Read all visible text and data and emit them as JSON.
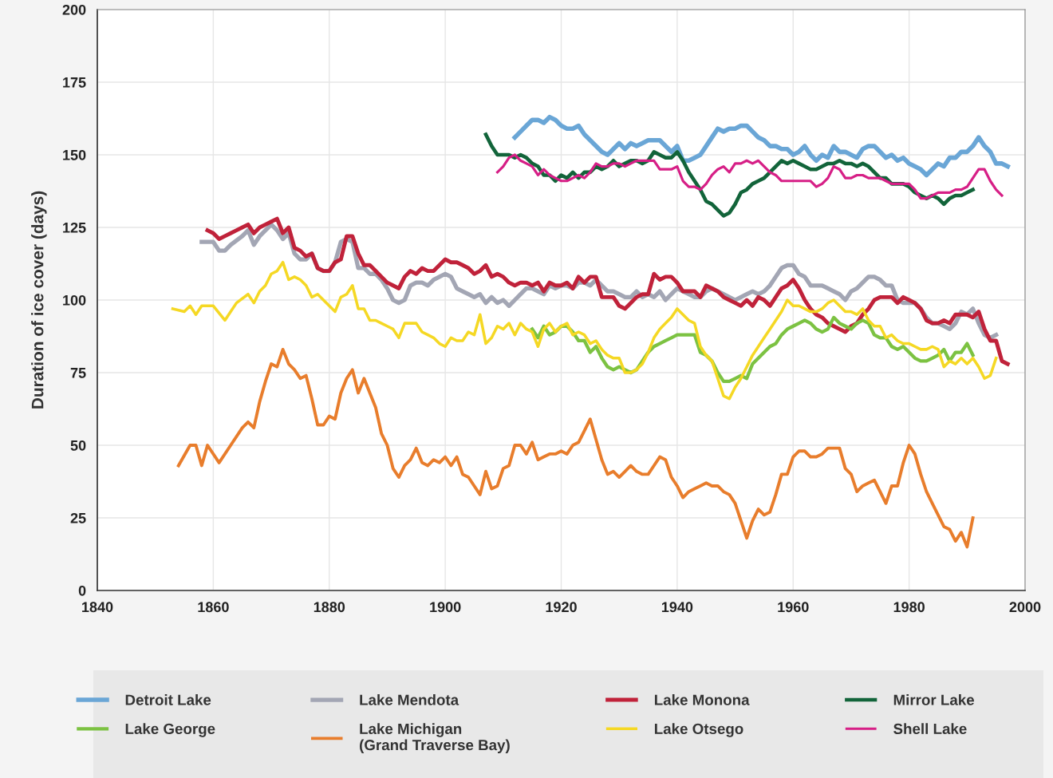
{
  "chart_data": {
    "type": "line",
    "ylabel": "Duration of ice cover (days)",
    "xlim": [
      1840,
      2000
    ],
    "xticks": [
      1840,
      1860,
      1880,
      1900,
      1920,
      1940,
      1960,
      1980,
      2000
    ],
    "ylim": [
      0,
      200
    ],
    "yticks": [
      0,
      25,
      50,
      75,
      100,
      125,
      150,
      175,
      200
    ],
    "grid": true,
    "legend": "bottom",
    "marker": "none",
    "line_style": "solid",
    "series": [
      {
        "name": "Detroit Lake",
        "color": "#6aa6d6",
        "x": [
          1912,
          1913,
          1914,
          1915,
          1916,
          1917,
          1918,
          1919,
          1920,
          1921,
          1922,
          1923,
          1924,
          1925,
          1926,
          1927,
          1928,
          1929,
          1930,
          1931,
          1932,
          1933,
          1934,
          1935,
          1936,
          1937,
          1938,
          1939,
          1940,
          1941,
          1942,
          1943,
          1944,
          1945,
          1946,
          1947,
          1948,
          1949,
          1950,
          1951,
          1952,
          1953,
          1954,
          1955,
          1956,
          1957,
          1958,
          1959,
          1960,
          1961,
          1962,
          1963,
          1964,
          1965,
          1966,
          1967,
          1968,
          1969,
          1970,
          1971,
          1972,
          1973,
          1974,
          1975,
          1976,
          1977,
          1978,
          1979,
          1980,
          1981,
          1982,
          1983,
          1984,
          1985,
          1986,
          1987,
          1988,
          1989,
          1990,
          1991,
          1992,
          1993,
          1994,
          1995,
          1996,
          1997
        ],
        "values": [
          156,
          158,
          160,
          162,
          162,
          161,
          163,
          162,
          160,
          159,
          159,
          160,
          157,
          155,
          153,
          151,
          150,
          152,
          154,
          152,
          154,
          153,
          154,
          155,
          155,
          155,
          153,
          151,
          153,
          148,
          148,
          149,
          150,
          153,
          156,
          159,
          158,
          159,
          159,
          160,
          160,
          158,
          156,
          155,
          153,
          153,
          152,
          152,
          150,
          151,
          153,
          150,
          148,
          150,
          149,
          153,
          151,
          151,
          150,
          149,
          152,
          153,
          153,
          151,
          149,
          150,
          148,
          149,
          147,
          146,
          145,
          143,
          145,
          147,
          146,
          149,
          149,
          151,
          151,
          153,
          156,
          153,
          151,
          147,
          147,
          146
        ]
      },
      {
        "name": "Lake Mendota",
        "color": "#a3a6b4",
        "x": [
          1858,
          1860,
          1861,
          1862,
          1863,
          1865,
          1866,
          1867,
          1868,
          1869,
          1870,
          1871,
          1872,
          1873,
          1874,
          1875,
          1876,
          1877,
          1878,
          1879,
          1880,
          1881,
          1882,
          1883,
          1884,
          1885,
          1886,
          1887,
          1888,
          1889,
          1890,
          1891,
          1892,
          1893,
          1894,
          1895,
          1896,
          1897,
          1898,
          1899,
          1900,
          1901,
          1902,
          1903,
          1904,
          1905,
          1906,
          1907,
          1908,
          1909,
          1910,
          1911,
          1912,
          1913,
          1914,
          1915,
          1916,
          1917,
          1918,
          1919,
          1920,
          1921,
          1922,
          1923,
          1924,
          1925,
          1926,
          1927,
          1928,
          1929,
          1930,
          1931,
          1932,
          1933,
          1934,
          1935,
          1936,
          1937,
          1938,
          1939,
          1940,
          1941,
          1942,
          1943,
          1944,
          1945,
          1946,
          1947,
          1948,
          1949,
          1950,
          1951,
          1952,
          1953,
          1954,
          1955,
          1956,
          1957,
          1958,
          1959,
          1960,
          1961,
          1962,
          1963,
          1964,
          1965,
          1966,
          1967,
          1968,
          1969,
          1970,
          1971,
          1972,
          1973,
          1974,
          1975,
          1976,
          1977,
          1978,
          1979,
          1980,
          1981,
          1982,
          1983,
          1984,
          1985,
          1986,
          1987,
          1988,
          1989,
          1990,
          1991,
          1992,
          1993,
          1994,
          1995
        ],
        "values": [
          120,
          120,
          117,
          117,
          119,
          122,
          124,
          119,
          122,
          124,
          126,
          124,
          121,
          123,
          116,
          114,
          114,
          116,
          111,
          110,
          110,
          113,
          120,
          121,
          120,
          111,
          111,
          109,
          109,
          107,
          104,
          100,
          99,
          100,
          105,
          106,
          106,
          105,
          107,
          108,
          109,
          108,
          104,
          103,
          102,
          101,
          102,
          99,
          101,
          99,
          100,
          98,
          100,
          102,
          104,
          104,
          103,
          102,
          105,
          104,
          105,
          105,
          104,
          106,
          106,
          105,
          107,
          105,
          103,
          103,
          102,
          101,
          101,
          103,
          101,
          102,
          101,
          103,
          100,
          102,
          104,
          103,
          102,
          101,
          101,
          103,
          104,
          103,
          102,
          101,
          100,
          101,
          102,
          103,
          102,
          103,
          105,
          108,
          111,
          112,
          112,
          109,
          108,
          105,
          105,
          105,
          104,
          103,
          102,
          100,
          103,
          104,
          106,
          108,
          108,
          107,
          105,
          105,
          100,
          99,
          99,
          99,
          97,
          94,
          92,
          92,
          91,
          90,
          92,
          96,
          95,
          97,
          92,
          88,
          87,
          88
        ]
      },
      {
        "name": "Lake Monona",
        "color": "#c0223a",
        "x": [
          1859,
          1860,
          1861,
          1862,
          1863,
          1864,
          1865,
          1866,
          1867,
          1868,
          1869,
          1870,
          1871,
          1872,
          1873,
          1874,
          1875,
          1876,
          1877,
          1878,
          1879,
          1880,
          1881,
          1882,
          1883,
          1884,
          1885,
          1886,
          1887,
          1888,
          1889,
          1890,
          1891,
          1892,
          1893,
          1894,
          1895,
          1896,
          1897,
          1898,
          1899,
          1900,
          1901,
          1902,
          1903,
          1904,
          1905,
          1906,
          1907,
          1908,
          1909,
          1910,
          1911,
          1912,
          1913,
          1914,
          1915,
          1916,
          1917,
          1918,
          1919,
          1920,
          1921,
          1922,
          1923,
          1924,
          1925,
          1926,
          1927,
          1928,
          1929,
          1930,
          1931,
          1932,
          1933,
          1934,
          1935,
          1936,
          1937,
          1938,
          1939,
          1940,
          1941,
          1942,
          1943,
          1944,
          1945,
          1946,
          1947,
          1948,
          1949,
          1950,
          1951,
          1952,
          1953,
          1954,
          1955,
          1956,
          1957,
          1958,
          1959,
          1960,
          1961,
          1962,
          1963,
          1964,
          1965,
          1966,
          1967,
          1968,
          1969,
          1970,
          1971,
          1972,
          1973,
          1974,
          1975,
          1976,
          1977,
          1978,
          1979,
          1980,
          1981,
          1982,
          1983,
          1984,
          1985,
          1986,
          1987,
          1988,
          1989,
          1990,
          1991,
          1992,
          1993,
          1994,
          1995,
          1996,
          1997
        ],
        "values": [
          124,
          123,
          121,
          122,
          123,
          124,
          125,
          126,
          123,
          125,
          126,
          127,
          128,
          123,
          125,
          118,
          117,
          115,
          116,
          111,
          110,
          110,
          113,
          114,
          122,
          122,
          116,
          112,
          112,
          110,
          108,
          106,
          105,
          104,
          108,
          110,
          109,
          111,
          110,
          110,
          112,
          114,
          113,
          113,
          112,
          111,
          109,
          110,
          112,
          108,
          109,
          108,
          106,
          105,
          106,
          106,
          105,
          106,
          103,
          106,
          105,
          105,
          106,
          104,
          108,
          106,
          108,
          108,
          101,
          101,
          101,
          98,
          97,
          99,
          101,
          102,
          102,
          109,
          107,
          108,
          108,
          106,
          103,
          103,
          103,
          101,
          105,
          104,
          103,
          101,
          100,
          99,
          98,
          100,
          98,
          101,
          100,
          98,
          101,
          104,
          105,
          107,
          104,
          100,
          97,
          95,
          94,
          92,
          91,
          90,
          89,
          91,
          92,
          95,
          97,
          100,
          101,
          101,
          101,
          99,
          101,
          100,
          99,
          97,
          93,
          92,
          92,
          93,
          92,
          95,
          95,
          95,
          94,
          96,
          90,
          86,
          86,
          79,
          78
        ]
      },
      {
        "name": "Mirror Lake",
        "color": "#12643a",
        "x": [
          1907,
          1908,
          1909,
          1910,
          1911,
          1912,
          1913,
          1914,
          1915,
          1916,
          1917,
          1918,
          1919,
          1920,
          1921,
          1922,
          1923,
          1924,
          1925,
          1926,
          1927,
          1928,
          1929,
          1930,
          1931,
          1932,
          1933,
          1934,
          1935,
          1936,
          1937,
          1938,
          1939,
          1940,
          1941,
          1942,
          1943,
          1944,
          1945,
          1946,
          1947,
          1948,
          1949,
          1950,
          1951,
          1952,
          1953,
          1954,
          1955,
          1956,
          1957,
          1958,
          1959,
          1960,
          1961,
          1962,
          1963,
          1964,
          1965,
          1966,
          1967,
          1968,
          1969,
          1970,
          1971,
          1972,
          1973,
          1974,
          1975,
          1976,
          1977,
          1978,
          1979,
          1980,
          1981,
          1982,
          1983,
          1984,
          1985,
          1986,
          1987,
          1988,
          1989,
          1990,
          1991
        ],
        "values": [
          157,
          153,
          150,
          150,
          150,
          149,
          150,
          149,
          147,
          146,
          143,
          143,
          141,
          143,
          142,
          144,
          142,
          144,
          144,
          146,
          145,
          146,
          148,
          146,
          147,
          148,
          148,
          147,
          148,
          151,
          150,
          149,
          149,
          151,
          148,
          144,
          141,
          138,
          134,
          133,
          131,
          129,
          130,
          133,
          137,
          138,
          140,
          141,
          142,
          144,
          146,
          148,
          147,
          148,
          147,
          146,
          145,
          145,
          146,
          147,
          147,
          148,
          147,
          147,
          146,
          147,
          146,
          144,
          142,
          142,
          140,
          140,
          140,
          139,
          137,
          136,
          135,
          136,
          135,
          133,
          135,
          136,
          136,
          137,
          138
        ]
      },
      {
        "name": "Lake George",
        "color": "#7cc242",
        "x": [
          1915,
          1916,
          1917,
          1918,
          1919,
          1920,
          1921,
          1922,
          1923,
          1924,
          1925,
          1926,
          1927,
          1928,
          1929,
          1930,
          1931,
          1932,
          1933,
          1934,
          1935,
          1936,
          1937,
          1938,
          1939,
          1940,
          1941,
          1942,
          1943,
          1944,
          1945,
          1946,
          1947,
          1948,
          1949,
          1950,
          1951,
          1952,
          1953,
          1954,
          1955,
          1956,
          1957,
          1958,
          1959,
          1960,
          1961,
          1962,
          1963,
          1964,
          1965,
          1966,
          1967,
          1968,
          1969,
          1970,
          1971,
          1972,
          1973,
          1974,
          1975,
          1976,
          1977,
          1978,
          1979,
          1980,
          1981,
          1982,
          1983,
          1984,
          1985,
          1986,
          1987,
          1988,
          1989,
          1990,
          1991
        ],
        "values": [
          90,
          87,
          91,
          88,
          89,
          91,
          91,
          89,
          86,
          86,
          82,
          84,
          80,
          77,
          76,
          77,
          76,
          75,
          76,
          79,
          82,
          84,
          85,
          86,
          87,
          88,
          88,
          88,
          88,
          82,
          81,
          79,
          75,
          72,
          72,
          73,
          74,
          73,
          78,
          80,
          82,
          84,
          85,
          88,
          90,
          91,
          92,
          93,
          92,
          90,
          89,
          90,
          94,
          92,
          91,
          90,
          92,
          93,
          92,
          88,
          87,
          87,
          84,
          83,
          84,
          82,
          80,
          79,
          79,
          80,
          81,
          83,
          79,
          82,
          82,
          85,
          81
        ]
      },
      {
        "name": "Lake Michigan\n(Grand Traverse Bay)",
        "color": "#e87d2c",
        "x": [
          1854,
          1856,
          1857,
          1858,
          1859,
          1861,
          1863,
          1865,
          1866,
          1867,
          1868,
          1869,
          1870,
          1871,
          1872,
          1873,
          1874,
          1875,
          1876,
          1877,
          1878,
          1879,
          1880,
          1881,
          1882,
          1883,
          1884,
          1885,
          1886,
          1887,
          1888,
          1889,
          1890,
          1891,
          1892,
          1893,
          1894,
          1895,
          1896,
          1897,
          1898,
          1899,
          1900,
          1901,
          1902,
          1903,
          1904,
          1905,
          1906,
          1907,
          1908,
          1909,
          1910,
          1911,
          1912,
          1913,
          1914,
          1915,
          1916,
          1917,
          1918,
          1919,
          1920,
          1921,
          1922,
          1923,
          1924,
          1925,
          1926,
          1927,
          1928,
          1929,
          1930,
          1931,
          1932,
          1933,
          1934,
          1935,
          1936,
          1937,
          1938,
          1939,
          1940,
          1941,
          1942,
          1943,
          1944,
          1945,
          1946,
          1947,
          1948,
          1949,
          1950,
          1951,
          1952,
          1953,
          1954,
          1955,
          1956,
          1957,
          1958,
          1959,
          1960,
          1961,
          1962,
          1963,
          1964,
          1965,
          1966,
          1967,
          1968,
          1969,
          1970,
          1971,
          1972,
          1973,
          1974,
          1975,
          1976,
          1977,
          1978,
          1979,
          1980,
          1981,
          1982,
          1983,
          1984,
          1985,
          1986,
          1987,
          1988,
          1989,
          1990,
          1991
        ],
        "values": [
          43,
          50,
          50,
          43,
          50,
          44,
          50,
          56,
          58,
          56,
          65,
          72,
          78,
          77,
          83,
          78,
          76,
          73,
          74,
          66,
          57,
          57,
          60,
          59,
          68,
          73,
          76,
          68,
          73,
          68,
          63,
          54,
          50,
          42,
          39,
          43,
          45,
          49,
          44,
          43,
          45,
          44,
          46,
          43,
          46,
          40,
          39,
          36,
          33,
          41,
          35,
          36,
          42,
          43,
          50,
          50,
          47,
          51,
          45,
          46,
          47,
          47,
          48,
          47,
          50,
          51,
          55,
          59,
          52,
          45,
          40,
          41,
          39,
          41,
          43,
          41,
          40,
          40,
          43,
          46,
          45,
          39,
          36,
          32,
          34,
          35,
          36,
          37,
          36,
          36,
          34,
          33,
          30,
          24,
          18,
          24,
          28,
          26,
          27,
          33,
          40,
          40,
          46,
          48,
          48,
          46,
          46,
          47,
          49,
          49,
          49,
          42,
          40,
          34,
          36,
          37,
          38,
          34,
          30,
          36,
          36,
          44,
          50,
          47,
          40,
          34,
          30,
          26,
          22,
          21,
          17,
          20,
          15,
          25
        ]
      },
      {
        "name": "Lake Otsego",
        "color": "#f5d824",
        "x": [
          1853,
          1855,
          1856,
          1857,
          1858,
          1860,
          1862,
          1863,
          1864,
          1866,
          1867,
          1868,
          1869,
          1870,
          1871,
          1872,
          1873,
          1874,
          1875,
          1876,
          1877,
          1878,
          1879,
          1880,
          1881,
          1882,
          1883,
          1884,
          1885,
          1886,
          1887,
          1888,
          1889,
          1890,
          1891,
          1892,
          1893,
          1894,
          1895,
          1896,
          1897,
          1898,
          1899,
          1900,
          1901,
          1902,
          1903,
          1904,
          1905,
          1906,
          1907,
          1908,
          1909,
          1910,
          1911,
          1912,
          1913,
          1914,
          1915,
          1916,
          1917,
          1918,
          1919,
          1920,
          1921,
          1922,
          1923,
          1924,
          1925,
          1926,
          1927,
          1928,
          1929,
          1930,
          1931,
          1932,
          1933,
          1934,
          1935,
          1936,
          1937,
          1938,
          1939,
          1940,
          1941,
          1942,
          1943,
          1944,
          1945,
          1946,
          1947,
          1948,
          1949,
          1950,
          1951,
          1952,
          1953,
          1954,
          1955,
          1956,
          1957,
          1958,
          1959,
          1960,
          1961,
          1962,
          1963,
          1964,
          1965,
          1966,
          1967,
          1968,
          1969,
          1970,
          1971,
          1972,
          1973,
          1974,
          1975,
          1976,
          1977,
          1978,
          1979,
          1980,
          1981,
          1982,
          1983,
          1984,
          1985,
          1986,
          1987,
          1988,
          1989,
          1990,
          1991,
          1992,
          1993,
          1994,
          1995
        ],
        "values": [
          97,
          96,
          98,
          95,
          98,
          98,
          93,
          96,
          99,
          102,
          99,
          103,
          105,
          109,
          110,
          113,
          107,
          108,
          107,
          105,
          101,
          102,
          100,
          98,
          96,
          101,
          102,
          105,
          97,
          97,
          93,
          93,
          92,
          91,
          90,
          87,
          92,
          92,
          92,
          89,
          88,
          87,
          85,
          84,
          87,
          86,
          86,
          89,
          88,
          95,
          85,
          87,
          91,
          90,
          92,
          88,
          92,
          90,
          89,
          84,
          90,
          92,
          89,
          91,
          92,
          88,
          89,
          88,
          85,
          86,
          83,
          81,
          80,
          80,
          75,
          75,
          76,
          78,
          82,
          87,
          90,
          92,
          94,
          97,
          95,
          93,
          92,
          84,
          81,
          79,
          73,
          67,
          66,
          70,
          73,
          77,
          81,
          84,
          87,
          90,
          93,
          96,
          100,
          98,
          98,
          97,
          96,
          96,
          97,
          99,
          100,
          98,
          96,
          96,
          95,
          97,
          93,
          91,
          91,
          87,
          88,
          86,
          85,
          85,
          84,
          83,
          83,
          84,
          83,
          77,
          79,
          78,
          80,
          78,
          80,
          77,
          73,
          74,
          80
        ]
      },
      {
        "name": "Shell Lake",
        "color": "#d61f86",
        "x": [
          1909,
          1910,
          1911,
          1912,
          1913,
          1914,
          1915,
          1916,
          1917,
          1918,
          1919,
          1920,
          1921,
          1922,
          1923,
          1924,
          1925,
          1926,
          1927,
          1928,
          1929,
          1930,
          1931,
          1932,
          1933,
          1934,
          1935,
          1936,
          1937,
          1938,
          1939,
          1940,
          1941,
          1942,
          1943,
          1944,
          1945,
          1946,
          1947,
          1948,
          1949,
          1950,
          1951,
          1952,
          1953,
          1954,
          1955,
          1956,
          1957,
          1958,
          1959,
          1960,
          1961,
          1962,
          1963,
          1964,
          1965,
          1966,
          1967,
          1968,
          1969,
          1970,
          1971,
          1972,
          1973,
          1974,
          1975,
          1976,
          1977,
          1978,
          1979,
          1980,
          1981,
          1982,
          1983,
          1984,
          1985,
          1986,
          1987,
          1988,
          1989,
          1990,
          1991,
          1992,
          1993,
          1994,
          1995,
          1996
        ],
        "values": [
          144,
          146,
          149,
          150,
          148,
          147,
          146,
          143,
          145,
          143,
          142,
          141,
          141,
          142,
          143,
          142,
          144,
          147,
          146,
          146,
          147,
          147,
          146,
          147,
          148,
          148,
          148,
          148,
          145,
          145,
          145,
          146,
          141,
          139,
          139,
          138,
          140,
          143,
          145,
          146,
          144,
          147,
          147,
          148,
          147,
          148,
          146,
          144,
          143,
          141,
          141,
          141,
          141,
          141,
          141,
          139,
          140,
          142,
          146,
          145,
          142,
          142,
          143,
          143,
          142,
          142,
          142,
          141,
          140,
          140,
          140,
          140,
          138,
          135,
          135,
          136,
          137,
          137,
          137,
          138,
          138,
          139,
          142,
          145,
          145,
          141,
          138,
          136
        ]
      }
    ]
  }
}
